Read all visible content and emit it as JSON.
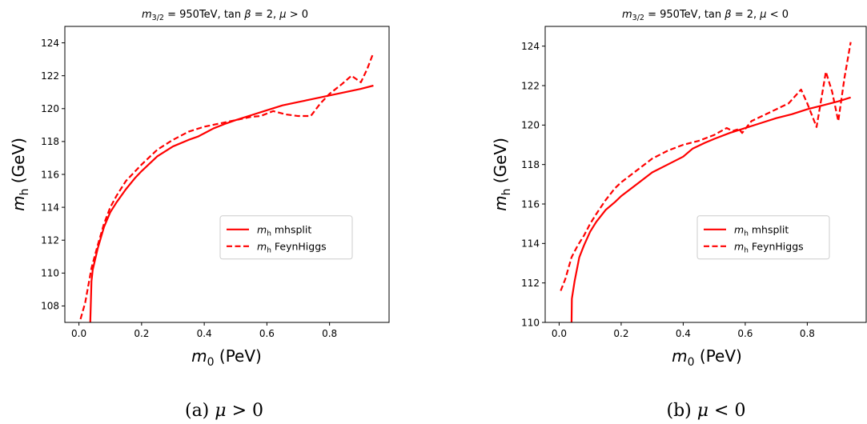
{
  "chart_data": [
    {
      "type": "line",
      "title": "m_{3/2} = 950TeV, tan β = 2, μ > 0",
      "title_parts": {
        "m": "m",
        "sub": "3/2",
        "rest": " = 950TeV, tan",
        "beta": "β",
        "rest2": " = 2, ",
        "mu": "μ",
        "cond": " > 0"
      },
      "xlabel_parts": {
        "m": "m",
        "sub": "0",
        "unit": "  (PeV)"
      },
      "ylabel_parts": {
        "m": "m",
        "sub": "h",
        "unit": "  (GeV)"
      },
      "xlim": [
        -0.045,
        0.99
      ],
      "ylim": [
        107.0,
        125.0
      ],
      "xticks": [
        0.0,
        0.2,
        0.4,
        0.6,
        0.8
      ],
      "xtick_labels": [
        "0.0",
        "0.2",
        "0.4",
        "0.6",
        "0.8"
      ],
      "yticks": [
        108,
        110,
        112,
        114,
        116,
        118,
        120,
        122,
        124
      ],
      "ytick_labels": [
        "108",
        "110",
        "112",
        "114",
        "116",
        "118",
        "120",
        "122",
        "124"
      ],
      "legend_loc": "center-right",
      "series": [
        {
          "name_parts": {
            "m": "m",
            "sub": "h",
            "rest": " mhsplit"
          },
          "color": "#ff0000",
          "style": "solid",
          "x": [
            0.036,
            0.04,
            0.044,
            0.06,
            0.08,
            0.1,
            0.12,
            0.15,
            0.18,
            0.2,
            0.25,
            0.3,
            0.35,
            0.38,
            0.4,
            0.43,
            0.47,
            0.5,
            0.55,
            0.6,
            0.65,
            0.7,
            0.75,
            0.8,
            0.85,
            0.9,
            0.94
          ],
          "y": [
            106.9,
            109.5,
            110.2,
            111.5,
            112.8,
            113.7,
            114.3,
            115.1,
            115.8,
            116.2,
            117.1,
            117.7,
            118.1,
            118.3,
            118.5,
            118.8,
            119.1,
            119.3,
            119.6,
            119.9,
            120.2,
            120.4,
            120.6,
            120.8,
            121.0,
            121.2,
            121.4
          ]
        },
        {
          "name_parts": {
            "m": "m",
            "sub": "h",
            "rest": " FeynHiggs"
          },
          "color": "#ff0000",
          "style": "dashed",
          "x": [
            0.005,
            0.02,
            0.04,
            0.06,
            0.08,
            0.1,
            0.12,
            0.15,
            0.18,
            0.2,
            0.25,
            0.3,
            0.35,
            0.4,
            0.45,
            0.5,
            0.55,
            0.58,
            0.62,
            0.66,
            0.7,
            0.74,
            0.77,
            0.8,
            0.84,
            0.87,
            0.9,
            0.92,
            0.94
          ],
          "y": [
            107.2,
            108.2,
            110.3,
            111.7,
            113.0,
            114.0,
            114.7,
            115.6,
            116.2,
            116.6,
            117.5,
            118.1,
            118.6,
            118.9,
            119.1,
            119.3,
            119.5,
            119.55,
            119.85,
            119.65,
            119.55,
            119.55,
            120.3,
            120.9,
            121.5,
            122.0,
            121.6,
            122.4,
            123.4
          ]
        }
      ]
    },
    {
      "type": "line",
      "title": "m_{3/2} = 950TeV, tan β = 2, μ < 0",
      "title_parts": {
        "m": "m",
        "sub": "3/2",
        "rest": " = 950TeV, tan",
        "beta": "β",
        "rest2": " = 2, ",
        "mu": "μ",
        "cond": " < 0"
      },
      "xlabel_parts": {
        "m": "m",
        "sub": "0",
        "unit": "  (PeV)"
      },
      "ylabel_parts": {
        "m": "m",
        "sub": "h",
        "unit": "  (GeV)"
      },
      "xlim": [
        -0.045,
        0.99
      ],
      "ylim": [
        110.0,
        125.0
      ],
      "xticks": [
        0.0,
        0.2,
        0.4,
        0.6,
        0.8
      ],
      "xtick_labels": [
        "0.0",
        "0.2",
        "0.4",
        "0.6",
        "0.8"
      ],
      "yticks": [
        110,
        112,
        114,
        116,
        118,
        120,
        122,
        124
      ],
      "ytick_labels": [
        "110",
        "112",
        "114",
        "116",
        "118",
        "120",
        "122",
        "124"
      ],
      "legend_loc": "center-right",
      "series": [
        {
          "name_parts": {
            "m": "m",
            "sub": "h",
            "rest": " mhsplit"
          },
          "color": "#ff0000",
          "style": "solid",
          "x": [
            0.04,
            0.041,
            0.05,
            0.065,
            0.08,
            0.1,
            0.12,
            0.15,
            0.18,
            0.2,
            0.25,
            0.3,
            0.35,
            0.4,
            0.43,
            0.47,
            0.5,
            0.55,
            0.6,
            0.65,
            0.7,
            0.75,
            0.8,
            0.85,
            0.9,
            0.94
          ],
          "y": [
            109.9,
            111.2,
            112.1,
            113.3,
            113.9,
            114.6,
            115.1,
            115.7,
            116.1,
            116.4,
            117.0,
            117.6,
            118.0,
            118.4,
            118.8,
            119.1,
            119.3,
            119.6,
            119.85,
            120.1,
            120.35,
            120.55,
            120.8,
            121.0,
            121.2,
            121.4
          ]
        },
        {
          "name_parts": {
            "m": "m",
            "sub": "h",
            "rest": " FeynHiggs"
          },
          "color": "#ff0000",
          "style": "dashed",
          "x": [
            0.005,
            0.02,
            0.04,
            0.06,
            0.08,
            0.1,
            0.12,
            0.15,
            0.18,
            0.2,
            0.25,
            0.3,
            0.35,
            0.4,
            0.45,
            0.5,
            0.54,
            0.56,
            0.58,
            0.59,
            0.62,
            0.66,
            0.7,
            0.74,
            0.78,
            0.8,
            0.83,
            0.86,
            0.88,
            0.9,
            0.92,
            0.94
          ],
          "y": [
            111.6,
            112.2,
            113.3,
            113.9,
            114.4,
            115.0,
            115.5,
            116.2,
            116.8,
            117.1,
            117.7,
            118.3,
            118.7,
            119.0,
            119.2,
            119.5,
            119.85,
            119.7,
            119.8,
            119.6,
            120.2,
            120.5,
            120.8,
            121.1,
            121.8,
            121.1,
            119.9,
            122.7,
            121.7,
            120.2,
            122.4,
            124.2
          ]
        }
      ]
    }
  ],
  "captions": [
    {
      "label": "(a)",
      "mu": "μ",
      "cond": " > 0"
    },
    {
      "label": "(b)",
      "mu": "μ",
      "cond": " < 0"
    }
  ]
}
